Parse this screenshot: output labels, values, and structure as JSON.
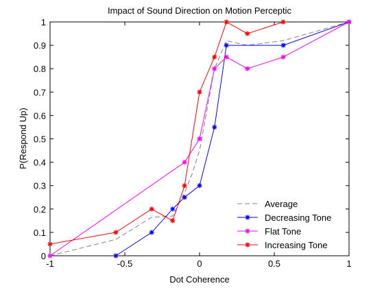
{
  "chart_data": {
    "type": "line",
    "title": "Impact of Sound Direction on Motion Perceptic",
    "xlabel": "Dot Coherence",
    "ylabel": "P(Respond Up)",
    "xlim": [
      -1,
      1
    ],
    "ylim": [
      0,
      1
    ],
    "xticks": [
      -1,
      -0.5,
      0,
      0.5,
      1
    ],
    "xtick_labels": [
      "-1",
      "-0.5",
      "0",
      "0.5",
      "1"
    ],
    "yticks": [
      0,
      0.1,
      0.2,
      0.3,
      0.4,
      0.5,
      0.6,
      0.7,
      0.8,
      0.9,
      1
    ],
    "ytick_labels": [
      "0",
      "0.1",
      "0.2",
      "0.3",
      "0.4",
      "0.5",
      "0.6",
      "0.7",
      "0.8",
      "0.9",
      "1"
    ],
    "grid": false,
    "legend_position": "bottom-right",
    "series": [
      {
        "name": "Average",
        "color": "#808080",
        "style": "dashed",
        "marker": "none",
        "x": [
          -1,
          -0.56,
          -0.32,
          -0.18,
          -0.1,
          -0.05,
          0,
          0.1,
          0.18,
          0.32,
          0.56,
          1
        ],
        "y": [
          0,
          0.07,
          0.165,
          0.17,
          0.27,
          0.35,
          0.45,
          0.8,
          0.92,
          0.9,
          0.92,
          1
        ]
      },
      {
        "name": "Decreasing Tone",
        "color": "#0000ff",
        "style": "solid",
        "marker": "star",
        "x": [
          -0.56,
          -0.32,
          -0.18,
          -0.1,
          0,
          0.1,
          0.18,
          0.56,
          1
        ],
        "y": [
          0,
          0.1,
          0.2,
          0.25,
          0.3,
          0.55,
          0.9,
          0.9,
          1
        ]
      },
      {
        "name": "Flat Tone",
        "color": "#ff00ff",
        "style": "solid",
        "marker": "star",
        "x": [
          -1,
          -0.1,
          0,
          0.1,
          0.18,
          0.32,
          0.56,
          1
        ],
        "y": [
          0,
          0.4,
          0.5,
          0.8,
          0.85,
          0.8,
          0.85,
          1
        ]
      },
      {
        "name": "Increasing Tone",
        "color": "#ff0000",
        "style": "solid",
        "marker": "star",
        "x": [
          -1,
          -0.56,
          -0.32,
          -0.18,
          -0.1,
          0,
          0.1,
          0.18,
          0.32,
          0.56
        ],
        "y": [
          0.05,
          0.1,
          0.2,
          0.15,
          0.3,
          0.7,
          0.85,
          1,
          0.95,
          1
        ]
      }
    ]
  }
}
